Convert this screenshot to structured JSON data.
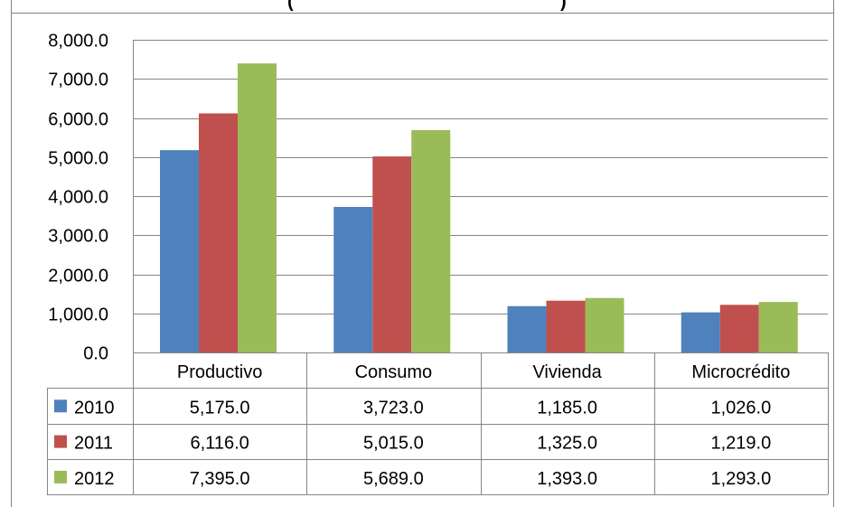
{
  "chart_data": {
    "type": "bar",
    "title": "(",
    "title_suffix": ")",
    "categories": [
      "Productivo",
      "Consumo",
      "Vivienda",
      "Microcrédito"
    ],
    "series": [
      {
        "name": "2010",
        "color": "#4F81BD",
        "values": [
          5175.0,
          3723.0,
          1185.0,
          1026.0
        ],
        "labels": [
          "5,175.0",
          "3,723.0",
          "1,185.0",
          "1,026.0"
        ]
      },
      {
        "name": "2011",
        "color": "#C0504D",
        "values": [
          6116.0,
          5015.0,
          1325.0,
          1219.0
        ],
        "labels": [
          "6,116.0",
          "5,015.0",
          "1,325.0",
          "1,219.0"
        ]
      },
      {
        "name": "2012",
        "color": "#9BBB59",
        "values": [
          7395.0,
          5689.0,
          1393.0,
          1293.0
        ],
        "labels": [
          "7,395.0",
          "5,689.0",
          "1,393.0",
          "1,293.0"
        ]
      }
    ],
    "ylim": [
      0,
      8000
    ],
    "yticks": [
      0,
      1000,
      2000,
      3000,
      4000,
      5000,
      6000,
      7000,
      8000
    ],
    "ytick_labels": [
      "0.0",
      "1,000.0",
      "2,000.0",
      "3,000.0",
      "4,000.0",
      "5,000.0",
      "6,000.0",
      "7,000.0",
      "8,000.0"
    ],
    "grid": true,
    "legend": "data-table"
  }
}
